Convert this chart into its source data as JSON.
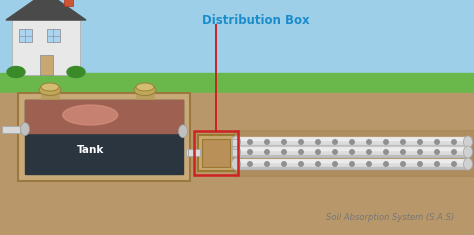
{
  "sky_color": "#9dd0e8",
  "grass_color": "#6ab84c",
  "soil_color": "#b8976a",
  "tank_border_color": "#c8aa78",
  "tank_dark": "#2a3540",
  "tank_liquid_pink": "#c07868",
  "pipe_color": "#d8d8d8",
  "pipe_edge": "#aaaaaa",
  "dist_box_color": "#c8a870",
  "dist_box_inner": "#b89058",
  "red_highlight": "#cc2222",
  "label_blue": "#1a8ccc",
  "label_white": "#ffffff",
  "label_gray": "#777777",
  "house_wall": "#e8e8e8",
  "house_roof": "#4a4a4a",
  "chimney_color": "#cc5533",
  "bush_color": "#3a8a2a",
  "window_color": "#aad4f0",
  "lid_color": "#c8b870",
  "dist_box_label": "Distribution Box",
  "tank_label": "Tank",
  "sas_label": "Soil Absorption System (S.A.S)"
}
